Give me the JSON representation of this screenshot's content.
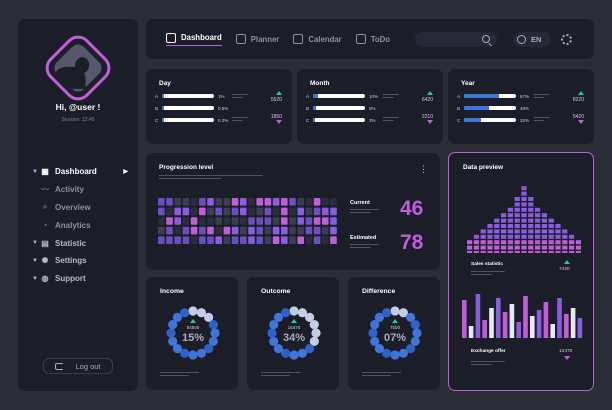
{
  "user": {
    "greeting": "Hi, @user !",
    "session": "Session: 12:45"
  },
  "nav": [
    {
      "label": "Dashboard",
      "icon": "grid-icon",
      "active": true,
      "caret": true
    },
    {
      "label": "Activity",
      "icon": "pulse-icon",
      "sub": true
    },
    {
      "label": "Overview",
      "icon": "search-icon",
      "sub": true
    },
    {
      "label": "Analytics",
      "icon": "chart-icon",
      "sub": true
    },
    {
      "label": "Statistic",
      "icon": "stats-icon",
      "caret": true
    },
    {
      "label": "Settings",
      "icon": "gear-icon",
      "caret": true
    },
    {
      "label": "Support",
      "icon": "globe-icon",
      "caret": true
    }
  ],
  "logout": "Log out",
  "topbar": {
    "tabs": [
      "Dashboard",
      "Planner",
      "Calendar",
      "ToDo"
    ],
    "lang": "EN"
  },
  "stats": [
    {
      "title": "Day",
      "rows": [
        {
          "l": "A",
          "p": "1%",
          "v": 0.01
        },
        {
          "l": "B",
          "p": "0.5%",
          "v": 0.005
        },
        {
          "l": "C",
          "p": "0.2%",
          "v": 0.002
        }
      ],
      "up": "5520",
      "down": "1850"
    },
    {
      "title": "Month",
      "rows": [
        {
          "l": "A",
          "p": "10%",
          "v": 0.1
        },
        {
          "l": "B",
          "p": "5%",
          "v": 0.05
        },
        {
          "l": "C",
          "p": "3%",
          "v": 0.03
        }
      ],
      "up": "6420",
      "down": "2210"
    },
    {
      "title": "Year",
      "rows": [
        {
          "l": "A",
          "p": "67%",
          "v": 0.67
        },
        {
          "l": "B",
          "p": "48%",
          "v": 0.48
        },
        {
          "l": "C",
          "p": "32%",
          "v": 0.32
        }
      ],
      "up": "8220",
      "down": "5420"
    }
  ],
  "progression": {
    "title": "Progression level",
    "current_label": "Current",
    "current_value": "46",
    "estimated_label": "Estimated",
    "estimated_value": "78"
  },
  "donuts": [
    {
      "title": "Income",
      "value": "84500",
      "pct": "15%",
      "fraction": 0.15
    },
    {
      "title": "Outcome",
      "value": "15470",
      "pct": "34%",
      "fraction": 0.34
    },
    {
      "title": "Difference",
      "value": "7500",
      "pct": "07%",
      "fraction": 0.07
    }
  ],
  "preview": {
    "title": "Data preview",
    "sales_label": "Sales statistic",
    "sales_value": "7420",
    "exchange_label": "Exchange offer",
    "exchange_value": "12470"
  },
  "colors": {
    "accent": "#c05ed8",
    "blue": "#3f74d8",
    "green": "#2ec4a0",
    "panel": "#1b1d28",
    "bg": "#2b2d36"
  }
}
